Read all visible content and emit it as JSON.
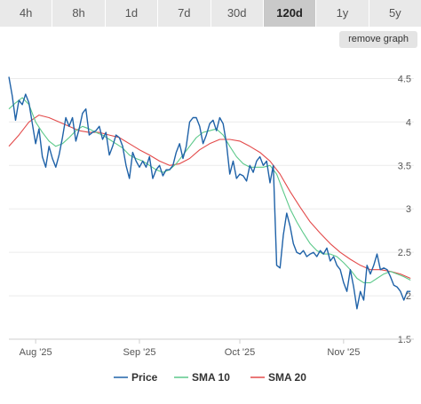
{
  "tabs": [
    {
      "label": "4h",
      "active": false
    },
    {
      "label": "8h",
      "active": false
    },
    {
      "label": "1d",
      "active": false
    },
    {
      "label": "7d",
      "active": false
    },
    {
      "label": "30d",
      "active": false
    },
    {
      "label": "120d",
      "active": true
    },
    {
      "label": "1y",
      "active": false
    },
    {
      "label": "5y",
      "active": false
    }
  ],
  "remove_graph_label": "remove graph",
  "chart_data": {
    "type": "line",
    "ylim": [
      1.5,
      4.75
    ],
    "y_ticks": [
      1.5,
      2,
      2.5,
      3,
      3.5,
      4,
      4.5
    ],
    "y_tick_labels": [
      "1.5",
      "2",
      "2.5",
      "3",
      "3.5",
      "4",
      "4.5"
    ],
    "x_ticks": [
      {
        "label": "Aug '25",
        "x": "2025-08-01"
      },
      {
        "label": "Sep '25",
        "x": "2025-09-01"
      },
      {
        "label": "Oct '25",
        "x": "2025-10-01"
      },
      {
        "label": "Nov '25",
        "x": "2025-11-01"
      }
    ],
    "xlim": [
      "2025-07-24",
      "2025-11-22"
    ],
    "grid": "horizontal",
    "legend_position": "bottom",
    "series": [
      {
        "name": "Price",
        "color": "#1f62a8",
        "points": [
          [
            "2025-07-24",
            4.52
          ],
          [
            "2025-07-25",
            4.3
          ],
          [
            "2025-07-26",
            4.02
          ],
          [
            "2025-07-27",
            4.25
          ],
          [
            "2025-07-28",
            4.2
          ],
          [
            "2025-07-29",
            4.32
          ],
          [
            "2025-07-30",
            4.22
          ],
          [
            "2025-07-31",
            3.98
          ],
          [
            "2025-08-01",
            3.75
          ],
          [
            "2025-08-02",
            3.92
          ],
          [
            "2025-08-03",
            3.6
          ],
          [
            "2025-08-04",
            3.48
          ],
          [
            "2025-08-05",
            3.72
          ],
          [
            "2025-08-06",
            3.58
          ],
          [
            "2025-08-07",
            3.48
          ],
          [
            "2025-08-08",
            3.62
          ],
          [
            "2025-08-09",
            3.82
          ],
          [
            "2025-08-10",
            4.05
          ],
          [
            "2025-08-11",
            3.95
          ],
          [
            "2025-08-12",
            4.05
          ],
          [
            "2025-08-13",
            3.78
          ],
          [
            "2025-08-14",
            3.92
          ],
          [
            "2025-08-15",
            4.1
          ],
          [
            "2025-08-16",
            4.15
          ],
          [
            "2025-08-17",
            3.85
          ],
          [
            "2025-08-18",
            3.88
          ],
          [
            "2025-08-19",
            3.9
          ],
          [
            "2025-08-20",
            3.95
          ],
          [
            "2025-08-21",
            3.8
          ],
          [
            "2025-08-22",
            3.88
          ],
          [
            "2025-08-23",
            3.62
          ],
          [
            "2025-08-24",
            3.72
          ],
          [
            "2025-08-25",
            3.85
          ],
          [
            "2025-08-26",
            3.82
          ],
          [
            "2025-08-27",
            3.72
          ],
          [
            "2025-08-28",
            3.5
          ],
          [
            "2025-08-29",
            3.35
          ],
          [
            "2025-08-30",
            3.65
          ],
          [
            "2025-08-31",
            3.55
          ],
          [
            "2025-09-01",
            3.48
          ],
          [
            "2025-09-02",
            3.55
          ],
          [
            "2025-09-03",
            3.48
          ],
          [
            "2025-09-04",
            3.6
          ],
          [
            "2025-09-05",
            3.35
          ],
          [
            "2025-09-06",
            3.45
          ],
          [
            "2025-09-07",
            3.5
          ],
          [
            "2025-09-08",
            3.38
          ],
          [
            "2025-09-09",
            3.45
          ],
          [
            "2025-09-10",
            3.45
          ],
          [
            "2025-09-11",
            3.5
          ],
          [
            "2025-09-12",
            3.65
          ],
          [
            "2025-09-13",
            3.75
          ],
          [
            "2025-09-14",
            3.58
          ],
          [
            "2025-09-15",
            3.72
          ],
          [
            "2025-09-16",
            4.0
          ],
          [
            "2025-09-17",
            4.05
          ],
          [
            "2025-09-18",
            4.05
          ],
          [
            "2025-09-19",
            3.95
          ],
          [
            "2025-09-20",
            3.75
          ],
          [
            "2025-09-21",
            3.85
          ],
          [
            "2025-09-22",
            3.98
          ],
          [
            "2025-09-23",
            4.02
          ],
          [
            "2025-09-24",
            3.9
          ],
          [
            "2025-09-25",
            4.05
          ],
          [
            "2025-09-26",
            3.98
          ],
          [
            "2025-09-27",
            3.75
          ],
          [
            "2025-09-28",
            3.4
          ],
          [
            "2025-09-29",
            3.55
          ],
          [
            "2025-09-30",
            3.35
          ],
          [
            "2025-10-01",
            3.4
          ],
          [
            "2025-10-02",
            3.38
          ],
          [
            "2025-10-03",
            3.32
          ],
          [
            "2025-10-04",
            3.5
          ],
          [
            "2025-10-05",
            3.42
          ],
          [
            "2025-10-06",
            3.55
          ],
          [
            "2025-10-07",
            3.6
          ],
          [
            "2025-10-08",
            3.5
          ],
          [
            "2025-10-09",
            3.55
          ],
          [
            "2025-10-10",
            3.3
          ],
          [
            "2025-10-11",
            3.5
          ],
          [
            "2025-10-12",
            2.35
          ],
          [
            "2025-10-13",
            2.32
          ],
          [
            "2025-10-14",
            2.7
          ],
          [
            "2025-10-15",
            2.95
          ],
          [
            "2025-10-16",
            2.8
          ],
          [
            "2025-10-17",
            2.6
          ],
          [
            "2025-10-18",
            2.5
          ],
          [
            "2025-10-19",
            2.48
          ],
          [
            "2025-10-20",
            2.52
          ],
          [
            "2025-10-21",
            2.45
          ],
          [
            "2025-10-22",
            2.48
          ],
          [
            "2025-10-23",
            2.5
          ],
          [
            "2025-10-24",
            2.45
          ],
          [
            "2025-10-25",
            2.52
          ],
          [
            "2025-10-26",
            2.48
          ],
          [
            "2025-10-27",
            2.55
          ],
          [
            "2025-10-28",
            2.4
          ],
          [
            "2025-10-29",
            2.45
          ],
          [
            "2025-10-30",
            2.35
          ],
          [
            "2025-10-31",
            2.3
          ],
          [
            "2025-11-01",
            2.15
          ],
          [
            "2025-11-02",
            2.05
          ],
          [
            "2025-11-03",
            2.3
          ],
          [
            "2025-11-04",
            2.1
          ],
          [
            "2025-11-05",
            1.85
          ],
          [
            "2025-11-06",
            2.05
          ],
          [
            "2025-11-07",
            1.95
          ],
          [
            "2025-11-08",
            2.35
          ],
          [
            "2025-11-09",
            2.25
          ],
          [
            "2025-11-10",
            2.35
          ],
          [
            "2025-11-11",
            2.48
          ],
          [
            "2025-11-12",
            2.3
          ],
          [
            "2025-11-13",
            2.32
          ],
          [
            "2025-11-14",
            2.3
          ],
          [
            "2025-11-15",
            2.22
          ],
          [
            "2025-11-16",
            2.12
          ],
          [
            "2025-11-17",
            2.1
          ],
          [
            "2025-11-18",
            2.05
          ],
          [
            "2025-11-19",
            1.95
          ],
          [
            "2025-11-20",
            2.05
          ],
          [
            "2025-11-21",
            2.05
          ]
        ]
      },
      {
        "name": "SMA 10",
        "color": "#5cc98a",
        "points": [
          [
            "2025-07-24",
            4.15
          ],
          [
            "2025-07-26",
            4.22
          ],
          [
            "2025-07-28",
            4.28
          ],
          [
            "2025-07-30",
            4.2
          ],
          [
            "2025-08-01",
            4.0
          ],
          [
            "2025-08-03",
            3.88
          ],
          [
            "2025-08-05",
            3.78
          ],
          [
            "2025-08-07",
            3.72
          ],
          [
            "2025-08-09",
            3.75
          ],
          [
            "2025-08-11",
            3.82
          ],
          [
            "2025-08-13",
            3.9
          ],
          [
            "2025-08-15",
            3.95
          ],
          [
            "2025-08-17",
            3.92
          ],
          [
            "2025-08-19",
            3.88
          ],
          [
            "2025-08-21",
            3.85
          ],
          [
            "2025-08-23",
            3.8
          ],
          [
            "2025-08-25",
            3.75
          ],
          [
            "2025-08-27",
            3.7
          ],
          [
            "2025-08-29",
            3.62
          ],
          [
            "2025-08-31",
            3.58
          ],
          [
            "2025-09-02",
            3.55
          ],
          [
            "2025-09-04",
            3.5
          ],
          [
            "2025-09-06",
            3.45
          ],
          [
            "2025-09-08",
            3.42
          ],
          [
            "2025-09-10",
            3.45
          ],
          [
            "2025-09-12",
            3.52
          ],
          [
            "2025-09-14",
            3.62
          ],
          [
            "2025-09-16",
            3.72
          ],
          [
            "2025-09-18",
            3.82
          ],
          [
            "2025-09-20",
            3.88
          ],
          [
            "2025-09-22",
            3.9
          ],
          [
            "2025-09-24",
            3.92
          ],
          [
            "2025-09-26",
            3.85
          ],
          [
            "2025-09-28",
            3.72
          ],
          [
            "2025-09-30",
            3.6
          ],
          [
            "2025-10-02",
            3.52
          ],
          [
            "2025-10-04",
            3.48
          ],
          [
            "2025-10-06",
            3.48
          ],
          [
            "2025-10-08",
            3.48
          ],
          [
            "2025-10-10",
            3.5
          ],
          [
            "2025-10-12",
            3.4
          ],
          [
            "2025-10-14",
            3.2
          ],
          [
            "2025-10-16",
            3.0
          ],
          [
            "2025-10-18",
            2.85
          ],
          [
            "2025-10-20",
            2.72
          ],
          [
            "2025-10-22",
            2.6
          ],
          [
            "2025-10-24",
            2.52
          ],
          [
            "2025-10-26",
            2.48
          ],
          [
            "2025-10-28",
            2.48
          ],
          [
            "2025-10-30",
            2.45
          ],
          [
            "2025-11-01",
            2.38
          ],
          [
            "2025-11-03",
            2.3
          ],
          [
            "2025-11-05",
            2.2
          ],
          [
            "2025-11-07",
            2.15
          ],
          [
            "2025-11-09",
            2.15
          ],
          [
            "2025-11-11",
            2.2
          ],
          [
            "2025-11-13",
            2.25
          ],
          [
            "2025-11-15",
            2.28
          ],
          [
            "2025-11-17",
            2.25
          ],
          [
            "2025-11-19",
            2.22
          ],
          [
            "2025-11-21",
            2.18
          ]
        ]
      },
      {
        "name": "SMA 20",
        "color": "#e34a4a",
        "points": [
          [
            "2025-07-24",
            3.72
          ],
          [
            "2025-07-27",
            3.85
          ],
          [
            "2025-07-30",
            4.0
          ],
          [
            "2025-08-02",
            4.08
          ],
          [
            "2025-08-05",
            4.05
          ],
          [
            "2025-08-08",
            4.0
          ],
          [
            "2025-08-11",
            3.95
          ],
          [
            "2025-08-14",
            3.9
          ],
          [
            "2025-08-17",
            3.88
          ],
          [
            "2025-08-20",
            3.88
          ],
          [
            "2025-08-23",
            3.85
          ],
          [
            "2025-08-26",
            3.82
          ],
          [
            "2025-08-29",
            3.75
          ],
          [
            "2025-09-01",
            3.68
          ],
          [
            "2025-09-04",
            3.62
          ],
          [
            "2025-09-07",
            3.55
          ],
          [
            "2025-09-10",
            3.5
          ],
          [
            "2025-09-13",
            3.52
          ],
          [
            "2025-09-16",
            3.58
          ],
          [
            "2025-09-19",
            3.68
          ],
          [
            "2025-09-22",
            3.75
          ],
          [
            "2025-09-25",
            3.8
          ],
          [
            "2025-09-28",
            3.8
          ],
          [
            "2025-10-01",
            3.78
          ],
          [
            "2025-10-04",
            3.72
          ],
          [
            "2025-10-07",
            3.65
          ],
          [
            "2025-10-10",
            3.55
          ],
          [
            "2025-10-13",
            3.4
          ],
          [
            "2025-10-16",
            3.2
          ],
          [
            "2025-10-19",
            3.02
          ],
          [
            "2025-10-22",
            2.85
          ],
          [
            "2025-10-25",
            2.72
          ],
          [
            "2025-10-28",
            2.6
          ],
          [
            "2025-10-31",
            2.5
          ],
          [
            "2025-11-03",
            2.42
          ],
          [
            "2025-11-06",
            2.35
          ],
          [
            "2025-11-09",
            2.3
          ],
          [
            "2025-11-12",
            2.3
          ],
          [
            "2025-11-15",
            2.28
          ],
          [
            "2025-11-18",
            2.25
          ],
          [
            "2025-11-21",
            2.2
          ]
        ]
      }
    ]
  }
}
